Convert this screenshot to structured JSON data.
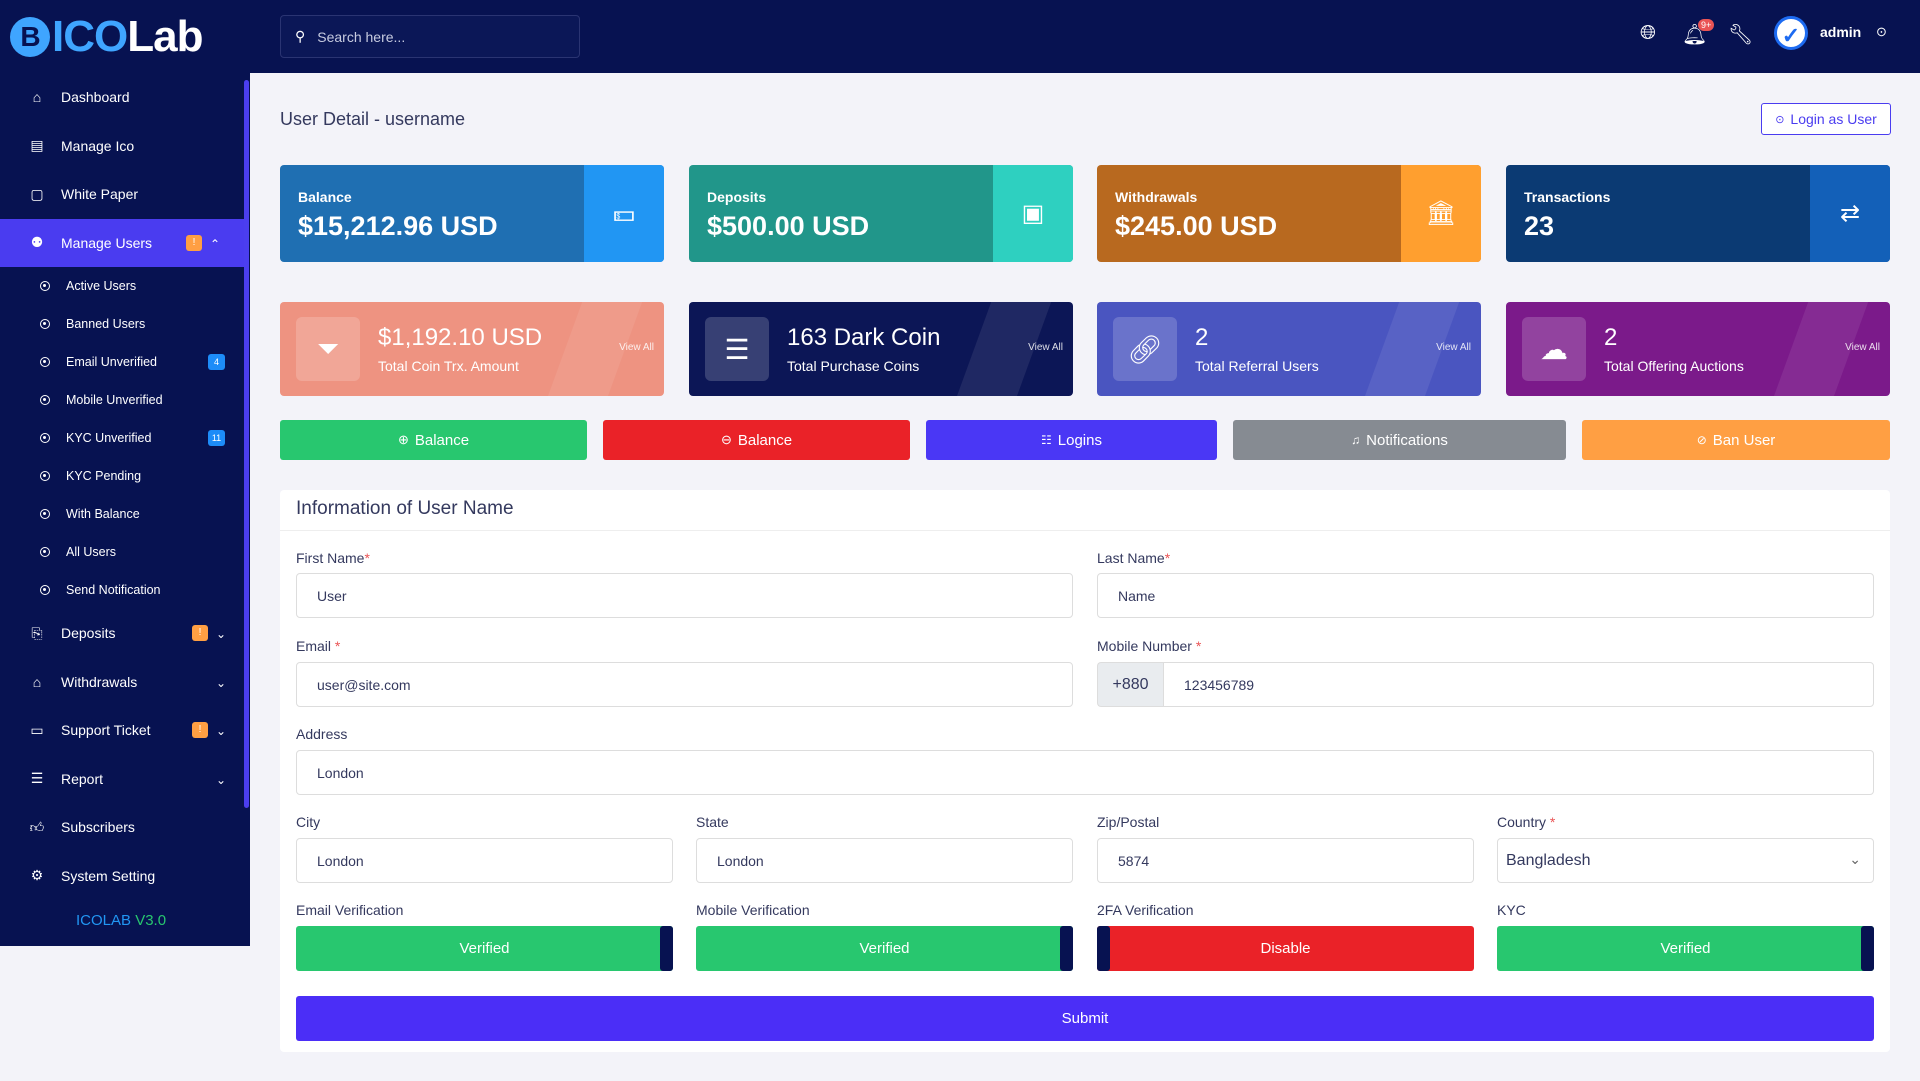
{
  "brand": {
    "logo_coin": "B",
    "logo_ico": "ICO",
    "logo_lab": "Lab",
    "version_name": "ICOLAB",
    "version_num": "V3.0"
  },
  "sidebar": {
    "items": [
      {
        "label": "Dashboard",
        "icon": "home-icon"
      },
      {
        "label": "Manage Ico",
        "icon": "stack-icon"
      },
      {
        "label": "White Paper",
        "icon": "document-icon"
      },
      {
        "label": "Manage Users",
        "icon": "users-icon",
        "badge": "!"
      },
      {
        "label": "Deposits",
        "icon": "deposit-icon",
        "badge": "!"
      },
      {
        "label": "Withdrawals",
        "icon": "bank-icon"
      },
      {
        "label": "Support Ticket",
        "icon": "ticket-icon",
        "badge": "!"
      },
      {
        "label": "Report",
        "icon": "list-icon"
      },
      {
        "label": "Subscribers",
        "icon": "thumbs-up-icon"
      },
      {
        "label": "System Setting",
        "icon": "gear-icon"
      }
    ],
    "sub_items": [
      {
        "label": "Active Users"
      },
      {
        "label": "Banned Users"
      },
      {
        "label": "Email Unverified",
        "badge": "4"
      },
      {
        "label": "Mobile Unverified"
      },
      {
        "label": "KYC Unverified",
        "badge": "11"
      },
      {
        "label": "KYC Pending"
      },
      {
        "label": "With Balance"
      },
      {
        "label": "All Users"
      },
      {
        "label": "Send Notification"
      }
    ]
  },
  "topbar": {
    "search_placeholder": "Search here...",
    "notification_badge": "9+",
    "user": "admin"
  },
  "page": {
    "title": "User Detail - username",
    "login_as_user": "Login as User"
  },
  "stats": [
    {
      "label": "Balance",
      "value": "$15,212.96 USD",
      "color": "#1f6fb2",
      "icon_bg": "#2196f3",
      "icon": "money-icon"
    },
    {
      "label": "Deposits",
      "value": "$500.00 USD",
      "color": "#21968a",
      "icon_bg": "#2ed0c0",
      "icon": "wallet-icon"
    },
    {
      "label": "Withdrawals",
      "value": "$245.00 USD",
      "color": "#b8691f",
      "icon_bg": "#ff9f2f",
      "icon": "bank-icon"
    },
    {
      "label": "Transactions",
      "value": "23",
      "color": "#0b3a73",
      "icon_bg": "#1360b8",
      "icon": "exchange-icon"
    }
  ],
  "cards": [
    {
      "value": "$1,192.10 USD",
      "label": "Total Coin Trx. Amount",
      "view": "View All",
      "color": "#ee9381",
      "icon": "coin-filter-icon"
    },
    {
      "value": "163 Dark Coin",
      "label": "Total Purchase Coins",
      "view": "View All",
      "color": "#0c1656",
      "icon": "coins-stack-icon"
    },
    {
      "value": "2",
      "label": "Total Referral Users",
      "view": "View All",
      "color": "#4a55c0",
      "icon": "link-icon"
    },
    {
      "value": "2",
      "label": "Total Offering Auctions",
      "view": "View All",
      "color": "#7b1a8a",
      "icon": "cloud-icon"
    }
  ],
  "actions": [
    {
      "label": "Balance",
      "color": "#28c76f",
      "icon": "plus-circle-icon"
    },
    {
      "label": "Balance",
      "color": "#ea2228",
      "icon": "minus-circle-icon"
    },
    {
      "label": "Logins",
      "color": "#4a37f5",
      "icon": "list-icon"
    },
    {
      "label": "Notifications",
      "color": "#868b92",
      "icon": "bell-icon"
    },
    {
      "label": "Ban User",
      "color": "#ff9f43",
      "icon": "ban-icon"
    }
  ],
  "form": {
    "heading": "Information of User Name",
    "first_name_label": "First Name",
    "first_name": "User",
    "last_name_label": "Last Name",
    "last_name": "Name",
    "email_label": "Email",
    "email": "user@site.com",
    "mobile_label": "Mobile Number",
    "mobile_prefix": "+880",
    "mobile": "123456789",
    "address_label": "Address",
    "address": "London",
    "city_label": "City",
    "city": "London",
    "state_label": "State",
    "state": "London",
    "zip_label": "Zip/Postal",
    "zip": "5874",
    "country_label": "Country",
    "country": "Bangladesh",
    "required_mark": "*",
    "email_verif_label": "Email Verification",
    "email_verif": "Verified",
    "mobile_verif_label": "Mobile Verification",
    "mobile_verif": "Verified",
    "twofa_label": "2FA Verification",
    "twofa": "Disable",
    "kyc_label": "KYC",
    "kyc": "Verified",
    "submit": "Submit"
  }
}
